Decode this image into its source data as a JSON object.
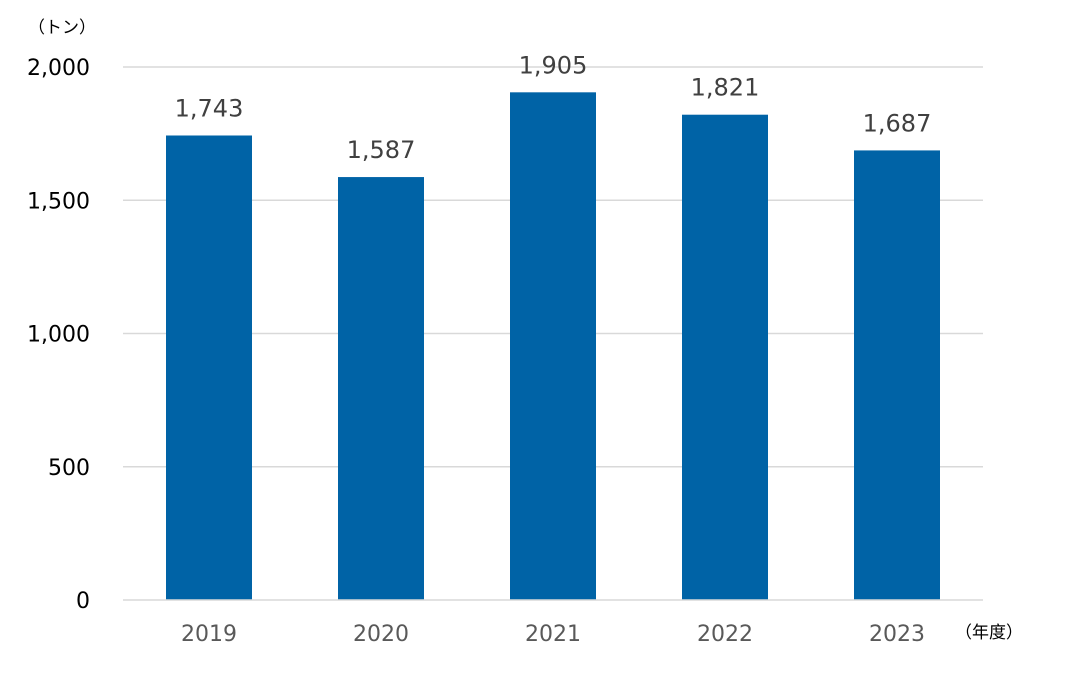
{
  "chart_data": {
    "type": "bar",
    "title": "",
    "xlabel": "（年度）",
    "ylabel": "（トン）",
    "categories": [
      "2019",
      "2020",
      "2021",
      "2022",
      "2023"
    ],
    "values": [
      1743,
      1587,
      1905,
      1821,
      1687
    ],
    "value_labels": [
      "1,743",
      "1,587",
      "1,905",
      "1,821",
      "1,687"
    ],
    "ylim": [
      0,
      2000
    ],
    "yticks": [
      0,
      500,
      1000,
      1500,
      2000
    ],
    "ytick_labels": [
      "0",
      "500",
      "1,000",
      "1,500",
      "2,000"
    ],
    "grid": true,
    "legend": "none",
    "colors": {
      "bar": "#0063a6",
      "grid": "#d9d9d9"
    }
  }
}
